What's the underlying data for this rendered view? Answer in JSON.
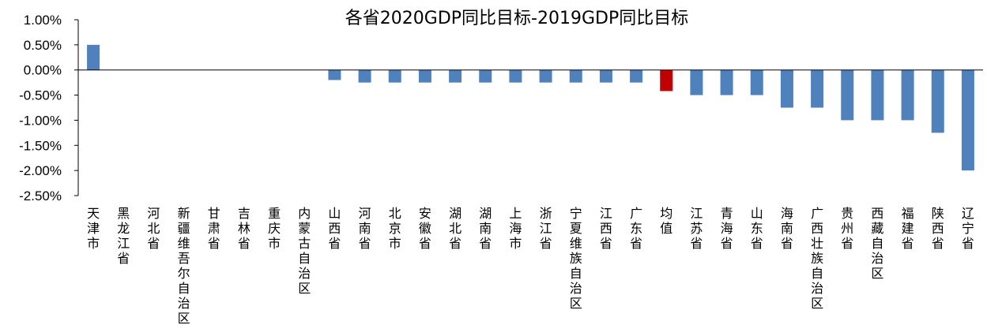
{
  "chart_data": {
    "type": "bar",
    "title": "各省2020GDP同比目标-2019GDP同比目标",
    "xlabel": "",
    "ylabel": "",
    "ylim": [
      -2.5,
      1.0
    ],
    "y_ticks": [
      "1.00%",
      "0.50%",
      "0.00%",
      "-0.50%",
      "-1.00%",
      "-1.50%",
      "-2.00%",
      "-2.50%"
    ],
    "y_unit": "%",
    "grid": false,
    "legend": "none",
    "colors": {
      "bar": "#4f81bd",
      "highlight": "#c00000",
      "axis": "#000000"
    },
    "highlight_category": "均值",
    "categories": [
      "天津市",
      "黑龙江省",
      "河北省",
      "新疆维吾尔自治区",
      "甘肃省",
      "吉林省",
      "重庆市",
      "内蒙古自治区",
      "山西省",
      "河南省",
      "北京市",
      "安徽省",
      "湖北省",
      "湖南省",
      "上海市",
      "浙江省",
      "宁夏维族自治区",
      "江西省",
      "广东省",
      "均值",
      "江苏省",
      "青海省",
      "山东省",
      "海南省",
      "广西壮族自治区",
      "贵州省",
      "西藏自治区",
      "福建省",
      "陕西省",
      "辽宁省"
    ],
    "values": [
      0.5,
      0,
      0,
      0,
      0,
      0,
      0,
      0,
      -0.2,
      -0.25,
      -0.25,
      -0.25,
      -0.25,
      -0.25,
      -0.25,
      -0.25,
      -0.25,
      -0.25,
      -0.25,
      -0.42,
      -0.5,
      -0.5,
      -0.5,
      -0.75,
      -0.75,
      -1.0,
      -1.0,
      -1.0,
      -1.25,
      -2.0
    ]
  }
}
